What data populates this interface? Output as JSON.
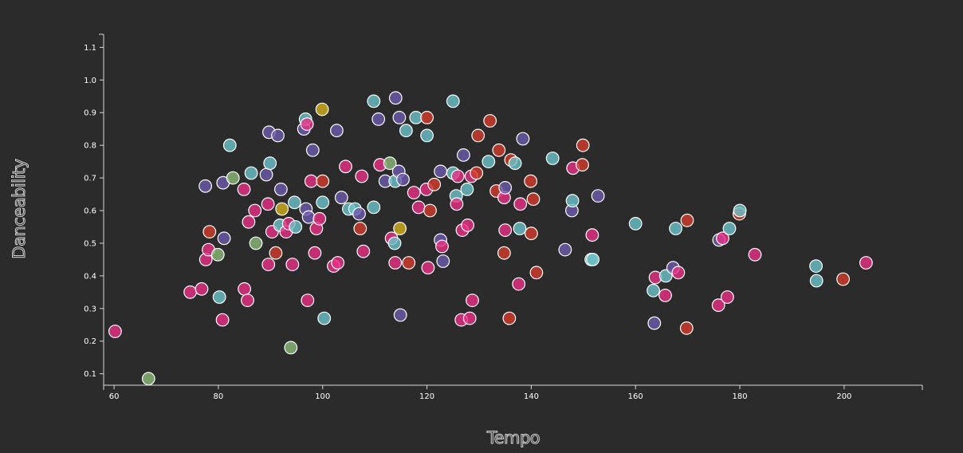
{
  "chart_data": {
    "type": "scatter",
    "title": "",
    "xlabel": "Tempo",
    "ylabel": "Danceability",
    "xlim": [
      58,
      215
    ],
    "ylim": [
      0.065,
      1.14
    ],
    "xticks": [
      60,
      80,
      100,
      120,
      140,
      160,
      180,
      200
    ],
    "yticks": [
      0.1,
      0.2,
      0.3,
      0.4,
      0.5,
      0.6,
      0.7,
      0.8,
      0.9,
      1.0,
      1.1
    ],
    "colors": {
      "pink": "#ec2f86",
      "red": "#d63b2b",
      "purple": "#6e5bb0",
      "cyan": "#6cc5cc",
      "green": "#8cbd7a",
      "yellow": "#d4b21a"
    },
    "points": [
      [
        60.2,
        0.23,
        "pink"
      ],
      [
        66.6,
        0.085,
        "green"
      ],
      [
        74.6,
        0.35,
        "pink"
      ],
      [
        76.8,
        0.36,
        "pink"
      ],
      [
        77.5,
        0.675,
        "purple"
      ],
      [
        77.6,
        0.45,
        "pink"
      ],
      [
        78.1,
        0.48,
        "pink"
      ],
      [
        78.3,
        0.535,
        "red"
      ],
      [
        79.9,
        0.465,
        "green"
      ],
      [
        80.2,
        0.335,
        "cyan"
      ],
      [
        80.8,
        0.265,
        "pink"
      ],
      [
        80.9,
        0.685,
        "purple"
      ],
      [
        81.1,
        0.515,
        "purple"
      ],
      [
        82.2,
        0.8,
        "cyan"
      ],
      [
        82.8,
        0.7,
        "green"
      ],
      [
        84.9,
        0.665,
        "pink"
      ],
      [
        85.0,
        0.36,
        "pink"
      ],
      [
        85.6,
        0.325,
        "pink"
      ],
      [
        85.8,
        0.565,
        "pink"
      ],
      [
        86.3,
        0.715,
        "cyan"
      ],
      [
        87.0,
        0.6,
        "pink"
      ],
      [
        87.2,
        0.5,
        "green"
      ],
      [
        89.2,
        0.71,
        "purple"
      ],
      [
        89.5,
        0.62,
        "pink"
      ],
      [
        89.6,
        0.435,
        "pink"
      ],
      [
        89.7,
        0.84,
        "purple"
      ],
      [
        89.9,
        0.745,
        "cyan"
      ],
      [
        90.3,
        0.535,
        "pink"
      ],
      [
        91.0,
        0.47,
        "red"
      ],
      [
        91.4,
        0.83,
        "purple"
      ],
      [
        91.8,
        0.555,
        "cyan"
      ],
      [
        92.0,
        0.665,
        "purple"
      ],
      [
        92.2,
        0.605,
        "yellow"
      ],
      [
        93.0,
        0.535,
        "pink"
      ],
      [
        93.5,
        0.56,
        "pink"
      ],
      [
        93.9,
        0.18,
        "green"
      ],
      [
        94.2,
        0.435,
        "pink"
      ],
      [
        94.6,
        0.625,
        "cyan"
      ],
      [
        94.8,
        0.55,
        "cyan"
      ],
      [
        96.4,
        0.85,
        "purple"
      ],
      [
        96.7,
        0.88,
        "cyan"
      ],
      [
        96.8,
        0.605,
        "purple"
      ],
      [
        97.0,
        0.865,
        "pink"
      ],
      [
        97.1,
        0.325,
        "pink"
      ],
      [
        97.3,
        0.58,
        "purple"
      ],
      [
        97.8,
        0.69,
        "pink"
      ],
      [
        98.1,
        0.785,
        "purple"
      ],
      [
        98.5,
        0.47,
        "pink"
      ],
      [
        98.8,
        0.545,
        "pink"
      ],
      [
        99.4,
        0.575,
        "pink"
      ],
      [
        99.9,
        0.91,
        "yellow"
      ],
      [
        100.0,
        0.69,
        "red"
      ],
      [
        100.0,
        0.625,
        "cyan"
      ],
      [
        100.3,
        0.27,
        "cyan"
      ],
      [
        102.1,
        0.43,
        "pink"
      ],
      [
        102.7,
        0.845,
        "purple"
      ],
      [
        102.9,
        0.44,
        "pink"
      ],
      [
        103.6,
        0.64,
        "purple"
      ],
      [
        104.4,
        0.735,
        "pink"
      ],
      [
        105.0,
        0.605,
        "cyan"
      ],
      [
        106.2,
        0.605,
        "cyan"
      ],
      [
        107.0,
        0.59,
        "purple"
      ],
      [
        107.2,
        0.545,
        "red"
      ],
      [
        107.5,
        0.705,
        "pink"
      ],
      [
        107.8,
        0.475,
        "pink"
      ],
      [
        109.8,
        0.61,
        "cyan"
      ],
      [
        109.8,
        0.935,
        "cyan"
      ],
      [
        110.7,
        0.88,
        "purple"
      ],
      [
        111.0,
        0.74,
        "pink"
      ],
      [
        112.0,
        0.69,
        "purple"
      ],
      [
        112.9,
        0.745,
        "green"
      ],
      [
        113.2,
        0.515,
        "pink"
      ],
      [
        113.8,
        0.5,
        "cyan"
      ],
      [
        113.9,
        0.44,
        "pink"
      ],
      [
        113.9,
        0.69,
        "cyan"
      ],
      [
        114.0,
        0.945,
        "purple"
      ],
      [
        114.6,
        0.72,
        "purple"
      ],
      [
        114.7,
        0.885,
        "purple"
      ],
      [
        114.8,
        0.545,
        "yellow"
      ],
      [
        114.9,
        0.28,
        "purple"
      ],
      [
        115.4,
        0.695,
        "purple"
      ],
      [
        116.0,
        0.845,
        "cyan"
      ],
      [
        116.5,
        0.44,
        "red"
      ],
      [
        117.5,
        0.655,
        "pink"
      ],
      [
        117.9,
        0.885,
        "cyan"
      ],
      [
        118.4,
        0.61,
        "pink"
      ],
      [
        119.9,
        0.665,
        "pink"
      ],
      [
        120.0,
        0.885,
        "red"
      ],
      [
        120.0,
        0.83,
        "cyan"
      ],
      [
        120.2,
        0.425,
        "pink"
      ],
      [
        120.6,
        0.6,
        "red"
      ],
      [
        121.4,
        0.68,
        "red"
      ],
      [
        122.6,
        0.51,
        "purple"
      ],
      [
        122.6,
        0.72,
        "purple"
      ],
      [
        122.9,
        0.49,
        "pink"
      ],
      [
        123.1,
        0.445,
        "purple"
      ],
      [
        125.0,
        0.935,
        "cyan"
      ],
      [
        125.0,
        0.715,
        "cyan"
      ],
      [
        125.6,
        0.645,
        "cyan"
      ],
      [
        125.7,
        0.62,
        "pink"
      ],
      [
        125.9,
        0.705,
        "pink"
      ],
      [
        126.6,
        0.265,
        "pink"
      ],
      [
        126.8,
        0.54,
        "pink"
      ],
      [
        127.0,
        0.77,
        "purple"
      ],
      [
        127.7,
        0.665,
        "cyan"
      ],
      [
        127.8,
        0.555,
        "pink"
      ],
      [
        128.2,
        0.27,
        "pink"
      ],
      [
        128.5,
        0.705,
        "pink"
      ],
      [
        128.7,
        0.325,
        "pink"
      ],
      [
        129.5,
        0.715,
        "red"
      ],
      [
        129.8,
        0.83,
        "red"
      ],
      [
        131.8,
        0.75,
        "cyan"
      ],
      [
        132.1,
        0.875,
        "red"
      ],
      [
        133.3,
        0.66,
        "red"
      ],
      [
        133.8,
        0.785,
        "red"
      ],
      [
        134.8,
        0.64,
        "pink"
      ],
      [
        134.8,
        0.47,
        "red"
      ],
      [
        135.0,
        0.67,
        "purple"
      ],
      [
        135.0,
        0.54,
        "pink"
      ],
      [
        135.8,
        0.27,
        "red"
      ],
      [
        136.1,
        0.755,
        "red"
      ],
      [
        136.9,
        0.745,
        "cyan"
      ],
      [
        137.6,
        0.375,
        "pink"
      ],
      [
        137.8,
        0.545,
        "cyan"
      ],
      [
        137.9,
        0.62,
        "pink"
      ],
      [
        138.4,
        0.82,
        "purple"
      ],
      [
        139.9,
        0.69,
        "red"
      ],
      [
        140.0,
        0.53,
        "red"
      ],
      [
        140.4,
        0.635,
        "red"
      ],
      [
        141.0,
        0.41,
        "red"
      ],
      [
        144.1,
        0.76,
        "cyan"
      ],
      [
        146.5,
        0.48,
        "purple"
      ],
      [
        147.8,
        0.6,
        "purple"
      ],
      [
        147.9,
        0.63,
        "cyan"
      ],
      [
        148.0,
        0.73,
        "pink"
      ],
      [
        149.8,
        0.74,
        "red"
      ],
      [
        149.9,
        0.8,
        "red"
      ],
      [
        151.5,
        0.45,
        "cyan"
      ],
      [
        151.7,
        0.525,
        "pink"
      ],
      [
        151.8,
        0.45,
        "cyan"
      ],
      [
        152.8,
        0.645,
        "purple"
      ],
      [
        160.0,
        0.56,
        "cyan"
      ],
      [
        163.4,
        0.355,
        "cyan"
      ],
      [
        163.6,
        0.255,
        "purple"
      ],
      [
        163.8,
        0.395,
        "pink"
      ],
      [
        165.7,
        0.34,
        "pink"
      ],
      [
        165.8,
        0.4,
        "cyan"
      ],
      [
        167.2,
        0.425,
        "purple"
      ],
      [
        167.7,
        0.545,
        "cyan"
      ],
      [
        168.2,
        0.41,
        "pink"
      ],
      [
        169.8,
        0.24,
        "red"
      ],
      [
        169.9,
        0.57,
        "red"
      ],
      [
        175.9,
        0.31,
        "pink"
      ],
      [
        176.0,
        0.51,
        "purple"
      ],
      [
        176.7,
        0.515,
        "pink"
      ],
      [
        177.6,
        0.335,
        "pink"
      ],
      [
        178.0,
        0.545,
        "cyan"
      ],
      [
        179.9,
        0.59,
        "red"
      ],
      [
        180.0,
        0.6,
        "cyan"
      ],
      [
        182.9,
        0.465,
        "pink"
      ],
      [
        194.6,
        0.43,
        "cyan"
      ],
      [
        194.7,
        0.385,
        "cyan"
      ],
      [
        199.8,
        0.39,
        "red"
      ],
      [
        204.2,
        0.44,
        "pink"
      ]
    ]
  }
}
